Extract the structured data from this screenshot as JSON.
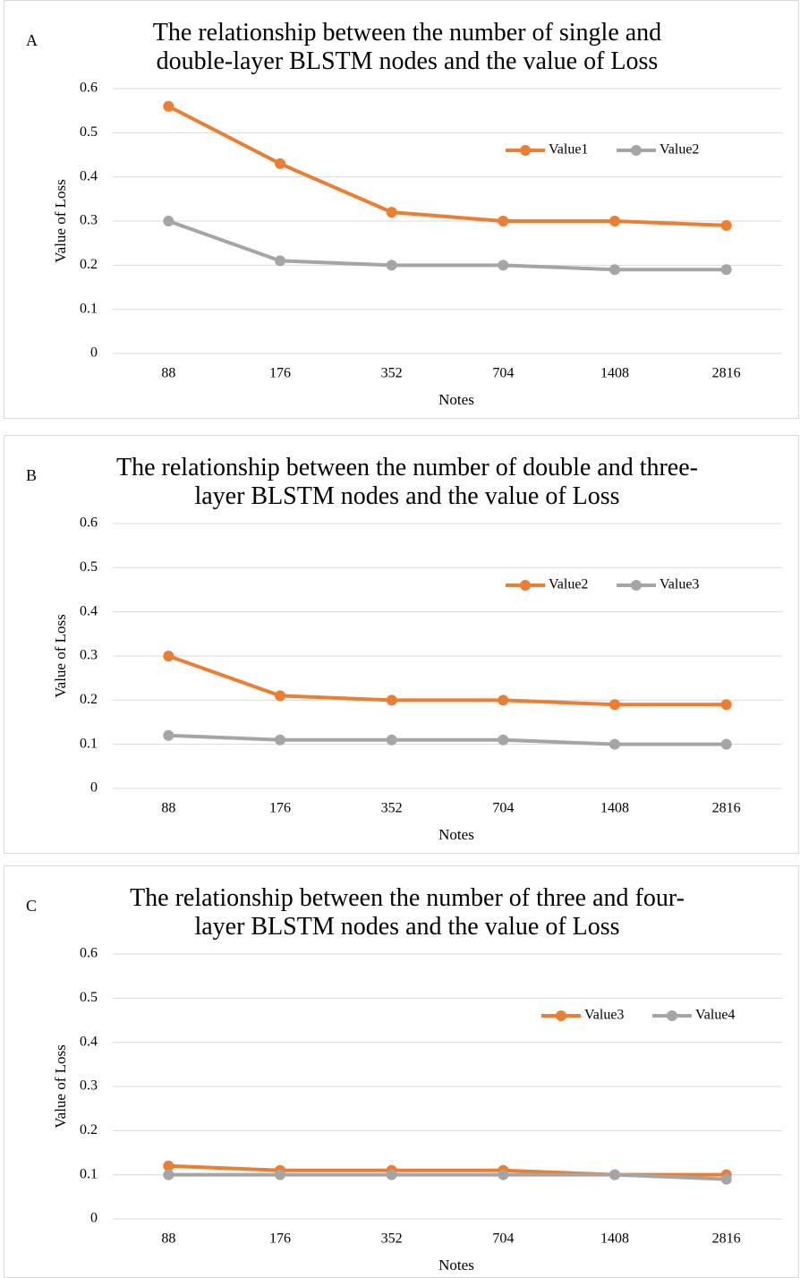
{
  "chart_data": [
    {
      "type": "line",
      "panel": "A",
      "title": "The relationship between the number of single and double-layer BLSTM nodes and the value of Loss",
      "x_label": "Notes",
      "y_label": "Value of Loss",
      "categories": [
        "88",
        "176",
        "352",
        "704",
        "1408",
        "2816"
      ],
      "series": [
        {
          "name": "Value1",
          "color": "#ed7d31",
          "values": [
            0.56,
            0.43,
            0.32,
            0.3,
            0.3,
            0.29
          ]
        },
        {
          "name": "Value2",
          "color": "#a5a5a5",
          "values": [
            0.3,
            0.21,
            0.2,
            0.2,
            0.19,
            0.19
          ]
        }
      ],
      "ylim": [
        0,
        0.6
      ],
      "yticks": [
        0,
        0.1,
        0.2,
        0.3,
        0.4,
        0.5,
        0.6
      ],
      "grid": true
    },
    {
      "type": "line",
      "panel": "B",
      "title": "The relationship between the number of double and three-layer BLSTM nodes and the value of Loss",
      "x_label": "Notes",
      "y_label": "Value of Loss",
      "categories": [
        "88",
        "176",
        "352",
        "704",
        "1408",
        "2816"
      ],
      "series": [
        {
          "name": "Value2",
          "color": "#ed7d31",
          "values": [
            0.3,
            0.21,
            0.2,
            0.2,
            0.19,
            0.19
          ]
        },
        {
          "name": "Value3",
          "color": "#a5a5a5",
          "values": [
            0.12,
            0.11,
            0.11,
            0.11,
            0.1,
            0.1
          ]
        }
      ],
      "ylim": [
        0,
        0.6
      ],
      "yticks": [
        0,
        0.1,
        0.2,
        0.3,
        0.4,
        0.5,
        0.6
      ],
      "grid": true
    },
    {
      "type": "line",
      "panel": "C",
      "title": "The relationship between the number of three and four-layer BLSTM nodes and the value of Loss",
      "x_label": "Notes",
      "y_label": "Value of Loss",
      "categories": [
        "88",
        "176",
        "352",
        "704",
        "1408",
        "2816"
      ],
      "series": [
        {
          "name": "Value3",
          "color": "#ed7d31",
          "values": [
            0.12,
            0.11,
            0.11,
            0.11,
            0.1,
            0.1
          ]
        },
        {
          "name": "Value4",
          "color": "#a5a5a5",
          "values": [
            0.1,
            0.1,
            0.1,
            0.1,
            0.1,
            0.09
          ]
        }
      ],
      "ylim": [
        0,
        0.6
      ],
      "yticks": [
        0,
        0.1,
        0.2,
        0.3,
        0.4,
        0.5,
        0.6
      ],
      "grid": true
    }
  ]
}
